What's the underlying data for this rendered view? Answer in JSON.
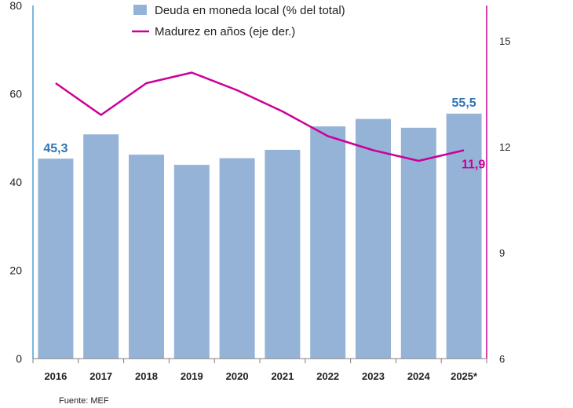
{
  "chart_data": {
    "type": "bar",
    "categories": [
      "2016",
      "2017",
      "2018",
      "2019",
      "2020",
      "2021",
      "2022",
      "2023",
      "2024",
      "2025*"
    ],
    "series": [
      {
        "name": "Deuda en moneda local (% del total)",
        "type": "bar",
        "axis": "left",
        "color": "#95b3d7",
        "values": [
          45.3,
          50.8,
          46.2,
          43.9,
          45.4,
          47.3,
          52.6,
          54.3,
          52.3,
          55.5
        ]
      },
      {
        "name": "Madurez en años (eje der.)",
        "type": "line",
        "axis": "right",
        "color": "#cc0099",
        "values": [
          13.8,
          12.9,
          13.8,
          14.1,
          13.6,
          13.0,
          12.3,
          11.9,
          11.6,
          11.9
        ]
      }
    ],
    "y_left": {
      "ylim": [
        0,
        80
      ],
      "ticks": [
        "0",
        "20",
        "40",
        "60",
        "80"
      ],
      "axis_color": "#4f9fd6"
    },
    "y_right": {
      "ylim": [
        6,
        16
      ],
      "ticks": [
        "6",
        "9",
        "12",
        "15"
      ],
      "axis_color": "#cc0099"
    },
    "data_labels": [
      {
        "text": "45,3",
        "color": "#2e75b6"
      },
      {
        "text": "55,5",
        "color": "#2e75b6"
      },
      {
        "text": "11,9",
        "color": "#cc0099"
      }
    ],
    "legend": {
      "position": "top-center",
      "items": [
        "Deuda en moneda local (% del total)",
        "Madurez en años (eje der.)"
      ]
    },
    "grid": false,
    "source": "Fuente:  MEF"
  }
}
